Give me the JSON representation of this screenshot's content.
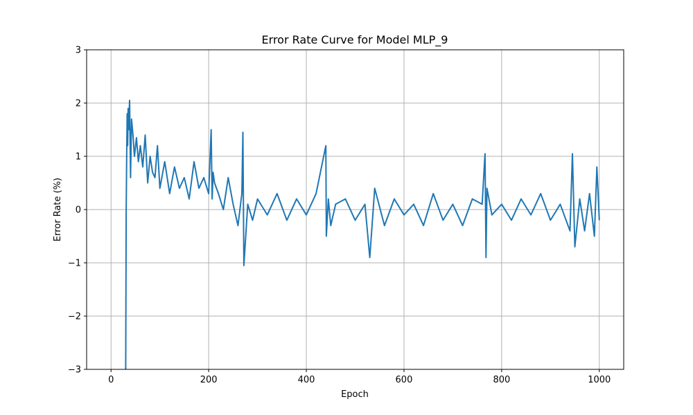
{
  "chart_data": {
    "type": "line",
    "title": "Error Rate Curve for Model MLP_9",
    "xlabel": "Epoch",
    "ylabel": "Error Rate (%)",
    "xlim": [
      -50,
      1050
    ],
    "ylim": [
      -3,
      3
    ],
    "xticks": [
      0,
      200,
      400,
      600,
      800,
      1000
    ],
    "xtick_labels": [
      "0",
      "200",
      "400",
      "600",
      "800",
      "1000"
    ],
    "yticks": [
      -3,
      -2,
      -1,
      0,
      1,
      2,
      3
    ],
    "ytick_labels": [
      "−3",
      "−2",
      "−1",
      "0",
      "1",
      "2",
      "3"
    ],
    "grid": true,
    "line_color": "#1f77b4",
    "series": [
      {
        "x": [
          30,
          31,
          32,
          33,
          34,
          35,
          36,
          38,
          40,
          42,
          45,
          48,
          52,
          56,
          60,
          65,
          70,
          75,
          80,
          85,
          90,
          95,
          100,
          110,
          120,
          130,
          140,
          150,
          160,
          170,
          180,
          190,
          200,
          205,
          207,
          209,
          212,
          220,
          230,
          240,
          250,
          260,
          268,
          270,
          272,
          280,
          290,
          300,
          320,
          340,
          360,
          380,
          400,
          420,
          440,
          441,
          445,
          450,
          460,
          480,
          500,
          520,
          530,
          540,
          560,
          580,
          600,
          620,
          640,
          660,
          680,
          700,
          720,
          740,
          760,
          766,
          768,
          770,
          780,
          800,
          820,
          840,
          860,
          880,
          900,
          920,
          940,
          945,
          950,
          960,
          970,
          980,
          990,
          995,
          1000
        ],
        "y": [
          -3.0,
          0.0,
          1.0,
          1.8,
          1.2,
          1.9,
          1.5,
          2.05,
          0.6,
          1.7,
          1.4,
          1.0,
          1.35,
          0.9,
          1.2,
          0.8,
          1.4,
          0.5,
          1.0,
          0.7,
          0.6,
          1.2,
          0.4,
          0.9,
          0.3,
          0.8,
          0.4,
          0.6,
          0.2,
          0.9,
          0.4,
          0.6,
          0.3,
          1.5,
          0.2,
          0.7,
          0.5,
          0.3,
          0.0,
          0.6,
          0.1,
          -0.3,
          0.3,
          1.45,
          -1.05,
          0.1,
          -0.2,
          0.2,
          -0.1,
          0.3,
          -0.2,
          0.2,
          -0.1,
          0.3,
          1.2,
          -0.5,
          0.2,
          -0.3,
          0.1,
          0.2,
          -0.2,
          0.1,
          -0.9,
          0.4,
          -0.3,
          0.2,
          -0.1,
          0.1,
          -0.3,
          0.3,
          -0.2,
          0.1,
          -0.3,
          0.2,
          0.1,
          1.05,
          -0.9,
          0.4,
          -0.1,
          0.1,
          -0.2,
          0.2,
          -0.1,
          0.3,
          -0.2,
          0.1,
          -0.4,
          1.05,
          -0.7,
          0.2,
          -0.4,
          0.3,
          -0.5,
          0.8,
          -0.2
        ]
      }
    ]
  }
}
